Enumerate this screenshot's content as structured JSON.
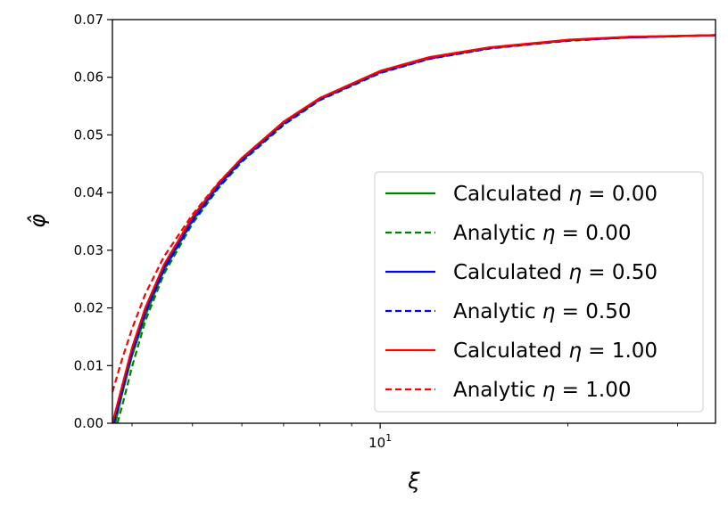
{
  "chart_data": {
    "type": "line",
    "xlabel": "ξ",
    "ylabel": "φ̂",
    "xscale": "log",
    "xlim": [
      3.72,
      34.5
    ],
    "ylim": [
      0,
      0.07
    ],
    "yticks": [
      "0.00",
      "0.01",
      "0.02",
      "0.03",
      "0.04",
      "0.05",
      "0.06",
      "0.07"
    ],
    "xticks": [
      {
        "value": 10,
        "base": "10",
        "exp": "1"
      }
    ],
    "legend_position": "lower-right",
    "grid": false,
    "series": [
      {
        "name_text": "Calculated ",
        "name_sym": "η",
        "name_val": " = 0.00",
        "color": "#008000",
        "style": "solid",
        "x": [
          3.76,
          3.85,
          4.0,
          4.2,
          4.5,
          5.0,
          5.5,
          6.0,
          7.0,
          8.0,
          10.0,
          12.0,
          15.0,
          20.0,
          25.0,
          34.5
        ],
        "y": [
          0.0,
          0.0048,
          0.0117,
          0.0186,
          0.0265,
          0.0351,
          0.0411,
          0.0456,
          0.052,
          0.0562,
          0.0609,
          0.0633,
          0.0651,
          0.0664,
          0.0669,
          0.0673
        ]
      },
      {
        "name_text": "Analytic ",
        "name_sym": "η",
        "name_val": " = 0.00",
        "color": "#008000",
        "style": "dashed",
        "x": [
          3.79,
          3.88,
          4.0,
          4.2,
          4.5,
          5.0,
          5.5,
          6.0,
          7.0,
          8.0,
          10.0,
          12.0,
          15.0,
          20.0,
          25.0,
          34.5
        ],
        "y": [
          0.0,
          0.0041,
          0.0098,
          0.0177,
          0.0259,
          0.0346,
          0.0407,
          0.0453,
          0.0517,
          0.056,
          0.0607,
          0.0632,
          0.065,
          0.0663,
          0.0669,
          0.0673
        ]
      },
      {
        "name_text": "Calculated ",
        "name_sym": "η",
        "name_val": " = 0.50",
        "color": "#0000ff",
        "style": "solid",
        "x": [
          3.73,
          3.85,
          4.0,
          4.2,
          4.5,
          5.0,
          5.5,
          6.0,
          7.0,
          8.0,
          10.0,
          12.0,
          15.0,
          20.0,
          25.0,
          34.5
        ],
        "y": [
          0.0,
          0.0056,
          0.0126,
          0.0195,
          0.027,
          0.0354,
          0.0413,
          0.0457,
          0.0521,
          0.0562,
          0.0609,
          0.0633,
          0.0651,
          0.0664,
          0.0669,
          0.0673
        ]
      },
      {
        "name_text": "Analytic ",
        "name_sym": "η",
        "name_val": " = 0.50",
        "color": "#0000ff",
        "style": "dashed",
        "x": [
          3.74,
          3.85,
          4.0,
          4.2,
          4.5,
          5.0,
          5.5,
          6.0,
          7.0,
          8.0,
          10.0,
          12.0,
          15.0,
          20.0,
          25.0,
          34.5
        ],
        "y": [
          0.0,
          0.0052,
          0.0122,
          0.0191,
          0.0266,
          0.035,
          0.0409,
          0.0455,
          0.0518,
          0.0561,
          0.0608,
          0.0632,
          0.065,
          0.0664,
          0.0669,
          0.0673
        ]
      },
      {
        "name_text": "Calculated ",
        "name_sym": "η",
        "name_val": " = 1.00",
        "color": "#ff0000",
        "style": "solid",
        "x": [
          3.72,
          3.85,
          4.0,
          4.2,
          4.5,
          5.0,
          5.5,
          6.0,
          7.0,
          8.0,
          10.0,
          12.0,
          15.0,
          20.0,
          25.0,
          34.5
        ],
        "y": [
          0.0,
          0.0062,
          0.0131,
          0.02,
          0.0275,
          0.0358,
          0.0416,
          0.046,
          0.0523,
          0.0564,
          0.0611,
          0.0635,
          0.0652,
          0.0665,
          0.067,
          0.0673
        ]
      },
      {
        "name_text": "Analytic ",
        "name_sym": "η",
        "name_val": " = 1.00",
        "color": "#ff0000",
        "style": "dashed",
        "x": [
          3.72,
          3.85,
          4.0,
          4.2,
          4.5,
          5.0,
          5.5,
          6.0,
          7.0,
          8.0,
          10.0,
          12.0,
          15.0,
          20.0,
          25.0,
          34.5
        ],
        "y": [
          0.0054,
          0.0109,
          0.0164,
          0.0224,
          0.0289,
          0.0362,
          0.0417,
          0.0459,
          0.0522,
          0.0563,
          0.061,
          0.0634,
          0.0651,
          0.0664,
          0.067,
          0.0673
        ]
      }
    ]
  }
}
